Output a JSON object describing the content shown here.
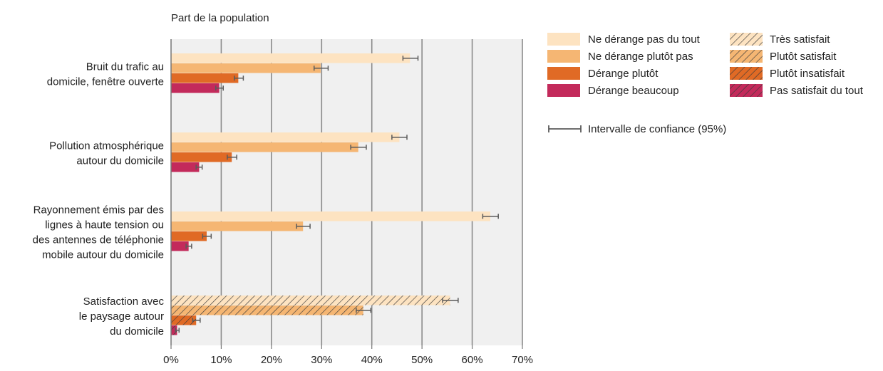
{
  "chart_data": {
    "type": "bar",
    "orientation": "horizontal",
    "subtitle": "Part de la population",
    "xlim": [
      0,
      70
    ],
    "xticks": [
      0,
      10,
      20,
      30,
      40,
      50,
      60,
      70
    ],
    "xtick_labels": [
      "0%",
      "10%",
      "20%",
      "30%",
      "40%",
      "50%",
      "60%",
      "70%"
    ],
    "grid": true,
    "legend_position": "right",
    "categories": [
      {
        "label_lines": [
          "Bruit du trafic au",
          "domicile, fenêtre ouverte"
        ],
        "bars": [
          {
            "series": 0,
            "value": 47.6,
            "ci": [
              46.2,
              49.2
            ]
          },
          {
            "series": 1,
            "value": 29.8,
            "ci": [
              28.5,
              31.3
            ]
          },
          {
            "series": 2,
            "value": 13.4,
            "ci": [
              12.6,
              14.4
            ]
          },
          {
            "series": 3,
            "value": 9.6,
            "ci": [
              8.9,
              10.4
            ]
          }
        ]
      },
      {
        "label_lines": [
          "Pollution atmosphérique",
          "autour du domicile"
        ],
        "bars": [
          {
            "series": 0,
            "value": 45.5,
            "ci": [
              44.0,
              47.0
            ]
          },
          {
            "series": 1,
            "value": 37.3,
            "ci": [
              35.8,
              38.9
            ]
          },
          {
            "series": 2,
            "value": 12.1,
            "ci": [
              11.2,
              13.1
            ]
          },
          {
            "series": 3,
            "value": 5.6,
            "ci": [
              5.0,
              6.2
            ]
          }
        ]
      },
      {
        "label_lines": [
          "Rayonnement émis par des",
          "lignes à haute tension ou",
          "des antennes de téléphonie",
          "mobile autour du domicile"
        ],
        "bars": [
          {
            "series": 0,
            "value": 63.6,
            "ci": [
              62.1,
              65.2
            ]
          },
          {
            "series": 1,
            "value": 26.3,
            "ci": [
              25.0,
              27.7
            ]
          },
          {
            "series": 2,
            "value": 7.1,
            "ci": [
              6.3,
              8.0
            ]
          },
          {
            "series": 3,
            "value": 3.5,
            "ci": [
              3.0,
              4.1
            ]
          }
        ]
      },
      {
        "label_lines": [
          "Satisfaction avec",
          "le paysage autour",
          "du domicile"
        ],
        "bars": [
          {
            "series": 4,
            "value": 55.6,
            "ci": [
              54.1,
              57.2
            ]
          },
          {
            "series": 5,
            "value": 38.3,
            "ci": [
              36.9,
              39.8
            ]
          },
          {
            "series": 6,
            "value": 5.0,
            "ci": [
              4.3,
              5.8
            ]
          },
          {
            "series": 7,
            "value": 1.2,
            "ci": [
              0.9,
              1.6
            ]
          }
        ]
      }
    ],
    "series": [
      {
        "name": "Ne dérange pas du tout",
        "color": "#fde3c1",
        "hatched": false
      },
      {
        "name": "Ne dérange plutôt pas",
        "color": "#f5b673",
        "hatched": false
      },
      {
        "name": "Dérange plutôt",
        "color": "#e06a25",
        "hatched": false
      },
      {
        "name": "Dérange beaucoup",
        "color": "#c32a5b",
        "hatched": false
      },
      {
        "name": "Très satisfait",
        "color": "#fde3c1",
        "hatched": true
      },
      {
        "name": "Plutôt satisfait",
        "color": "#f5b673",
        "hatched": true
      },
      {
        "name": "Plutôt insatisfait",
        "color": "#e06a25",
        "hatched": true
      },
      {
        "name": "Pas satisfait du tout",
        "color": "#c32a5b",
        "hatched": true
      }
    ],
    "ci_legend": "Intervalle de confiance (95%)",
    "colors": {
      "plot_background": "#f0f0f0",
      "gridline": "#8a8a8a",
      "error_bar": "#5a5a5a",
      "hatch_line": "#3a3a3a"
    }
  }
}
